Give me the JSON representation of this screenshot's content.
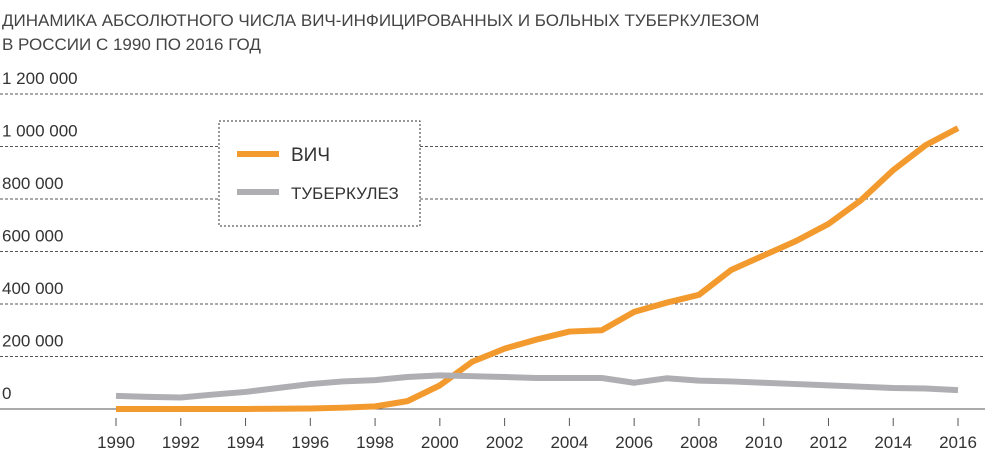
{
  "chart_data": {
    "type": "line",
    "title": [
      "ДИНАМИКА АБСОЛЮТНОГО ЧИСЛА ВИЧ-ИНФИЦИРОВАННЫХ И БОЛЬНЫХ ТУБЕРКУЛЕЗОМ",
      "В РОССИИ С 1990 ПО 2016 ГОД"
    ],
    "x": [
      1990,
      1991,
      1992,
      1993,
      1994,
      1995,
      1996,
      1997,
      1998,
      1999,
      2000,
      2001,
      2002,
      2003,
      2004,
      2005,
      2006,
      2007,
      2008,
      2009,
      2010,
      2011,
      2012,
      2013,
      2014,
      2015,
      2016
    ],
    "series": [
      {
        "name": "ВИЧ",
        "color": "#f39a2e",
        "values": [
          0,
          0,
          0,
          0,
          0,
          1000,
          2000,
          5000,
          10000,
          30000,
          90000,
          180000,
          230000,
          265000,
          295000,
          300000,
          370000,
          405000,
          435000,
          530000,
          585000,
          640000,
          705000,
          795000,
          910000,
          1005000,
          1070000
        ]
      },
      {
        "name": "ТУБЕРКУЛЕЗ",
        "color": "#aeaeb3",
        "values": [
          50000,
          46000,
          44000,
          55000,
          65000,
          80000,
          95000,
          105000,
          110000,
          122000,
          128000,
          125000,
          122000,
          118000,
          118000,
          118000,
          100000,
          117000,
          108000,
          105000,
          100000,
          95000,
          90000,
          85000,
          80000,
          78000,
          72000
        ]
      }
    ],
    "xlim": [
      1990,
      2016
    ],
    "xticks": [
      1990,
      1992,
      1994,
      1996,
      1998,
      2000,
      2002,
      2004,
      2006,
      2008,
      2010,
      2012,
      2014,
      2016
    ],
    "ylim": [
      0,
      1200000
    ],
    "yticks": [
      0,
      {
        "value": 200000,
        "label": "200 000"
      },
      {
        "value": 400000,
        "label": "400 000"
      },
      {
        "value": 600000,
        "label": "600 000"
      },
      {
        "value": 800000,
        "label": "800 000"
      },
      {
        "value": 1000000,
        "label": "1 000 000"
      },
      {
        "value": 1200000,
        "label": "1 200 000"
      }
    ],
    "grid": true,
    "legend": "upper left"
  }
}
